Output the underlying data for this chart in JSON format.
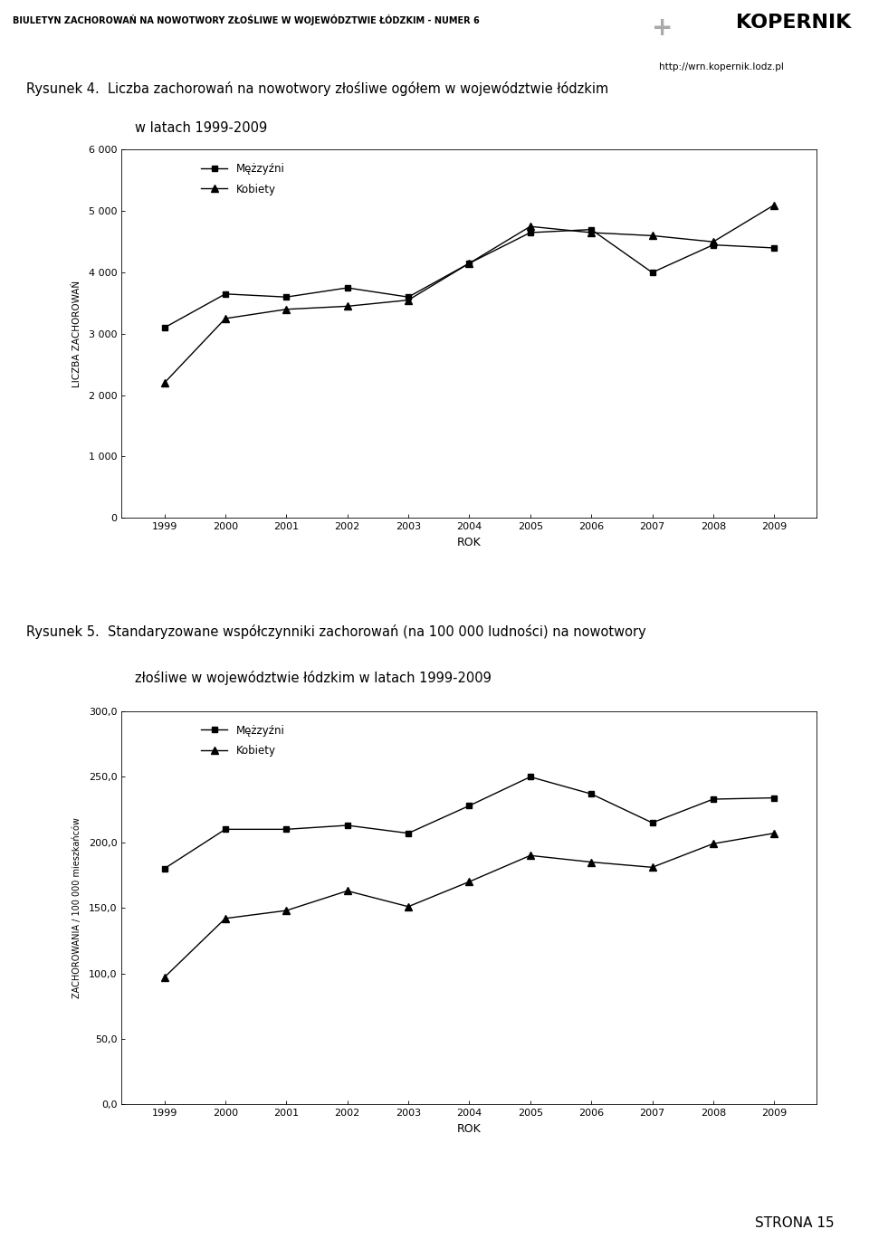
{
  "years": [
    1999,
    2000,
    2001,
    2002,
    2003,
    2004,
    2005,
    2006,
    2007,
    2008,
    2009
  ],
  "chart1": {
    "title_line1": "Rysunek 4.  Liczba zachorowań na nowotwory złośliwe ogółem w województwie łódzkim",
    "title_line2": "w latach 1999-2009",
    "mezczyzni": [
      3100,
      3650,
      3600,
      3750,
      3600,
      4150,
      4650,
      4700,
      4000,
      4450,
      4400
    ],
    "kobiety": [
      2200,
      3250,
      3400,
      3450,
      3550,
      4150,
      4750,
      4650,
      4600,
      4500,
      5100
    ],
    "ylabel": "LICZBA ZACHOROWAŃ",
    "xlabel": "ROK",
    "ylim": [
      0,
      6000
    ],
    "yticks": [
      0,
      1000,
      2000,
      3000,
      4000,
      5000,
      6000
    ],
    "ytick_labels": [
      "0",
      "1 000",
      "2 000",
      "3 000",
      "4 000",
      "5 000",
      "6 000"
    ],
    "legend_mezczyzni": "Mężzyźni",
    "legend_kobiety": "Kobiety"
  },
  "chart2": {
    "title_line1": "Rysunek 5.  Standaryzowane współczynniki zachorowań (na 100 000 ludności) na nowotwory",
    "title_line2": "złośliwe w województwie łódzkim w latach 1999-2009",
    "mezczyzni": [
      180,
      210,
      210,
      213,
      207,
      228,
      250,
      237,
      215,
      233,
      234
    ],
    "kobiety": [
      97,
      142,
      148,
      163,
      151,
      170,
      190,
      185,
      181,
      199,
      207
    ],
    "ylabel": "ZACHOROWANIA / 100 000 mieszkańców",
    "xlabel": "ROK",
    "ylim": [
      0,
      300
    ],
    "yticks": [
      0,
      50,
      100,
      150,
      200,
      250,
      300
    ],
    "ytick_labels": [
      "0,0",
      "50,0",
      "100,0",
      "150,0",
      "200,0",
      "250,0",
      "300,0"
    ],
    "legend_mezczyzni": "Mężzyźni",
    "legend_kobiety": "Kobiety"
  },
  "background_color": "#ffffff",
  "line_color": "#000000",
  "header_text": "BIULETYN ZACHOROWAŃ NA NOWOTWORY ZŁOŚLIWE W WOJEWÓDZTWIE ŁÓDZKIM - NUMER 6",
  "kopernik_text": "KOPERNIK",
  "kopernik_url": "http://wrn.kopernik.lodz.pl",
  "footer_text": "STRONA 15"
}
